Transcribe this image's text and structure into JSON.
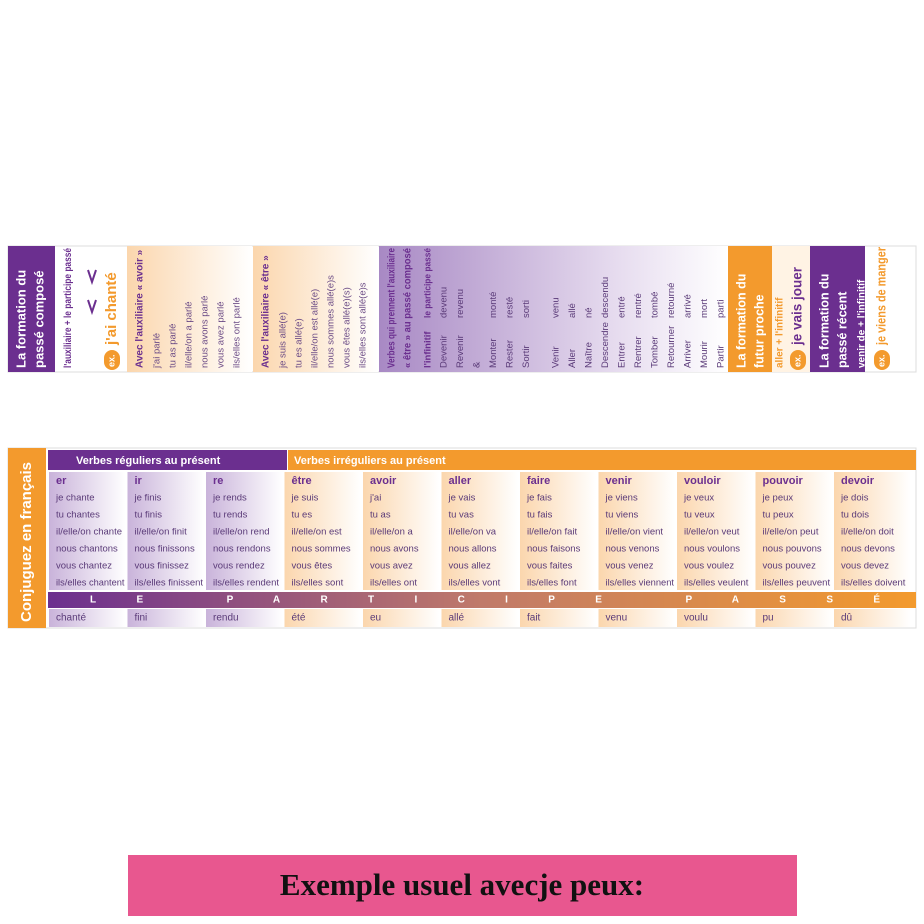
{
  "passe_compose": {
    "title": [
      "La formation du",
      "passé composé"
    ],
    "formula": "l'auxiliaire + le participe passé",
    "example_marker": "ex.",
    "example": "j'ai chanté"
  },
  "avoir_panel": {
    "heading": "Avec l'auxiliaire « avoir »",
    "lines": [
      "j'ai parlé",
      "tu as parlé",
      "il/elle/on a parlé",
      "nous avons parlé",
      "vous avez parlé",
      "ils/elles ont parlé"
    ]
  },
  "etre_panel": {
    "heading": "Avec l'auxiliaire « être »",
    "lines": [
      "je suis allé(e)",
      "tu es allé(e)",
      "il/elle/on est allé(e)",
      "nous sommes allé(e)s",
      "vous êtes allé(e)(s)",
      "ils/elles sont allé(e)s"
    ]
  },
  "etre_verbs": {
    "heading": [
      "Verbes qui prennent l'auxiliaire",
      "« être » au passé composé"
    ],
    "headers": [
      "l'infinitif",
      "le participe passé"
    ],
    "rows": [
      {
        "infinitive": "Devenir",
        "participle": "devenu"
      },
      {
        "infinitive": "Revenir",
        "participle": "revenu"
      },
      {
        "infinitive": "&"
      },
      {
        "infinitive": "Monter",
        "participle": "monté"
      },
      {
        "infinitive": "Rester",
        "participle": "resté"
      },
      {
        "infinitive": "Sortir",
        "participle": "sorti"
      },
      {
        "infinitive": "Venir",
        "participle": "venu"
      },
      {
        "infinitive": "Aller",
        "participle": "allé"
      },
      {
        "infinitive": "Naître",
        "participle": "né"
      },
      {
        "infinitive": "Descendre",
        "participle": "descendu"
      },
      {
        "infinitive": "Entrer",
        "participle": "entré"
      },
      {
        "infinitive": "Rentrer",
        "participle": "rentré"
      },
      {
        "infinitive": "Tomber",
        "participle": "tombé"
      },
      {
        "infinitive": "Retourner",
        "participle": "retourné"
      },
      {
        "infinitive": "Arriver",
        "participle": "arrivé"
      },
      {
        "infinitive": "Mourir",
        "participle": "mort"
      },
      {
        "infinitive": "Partir",
        "participle": "parti"
      }
    ]
  },
  "futur_proche": {
    "title": [
      "La formation du",
      "futur proche"
    ],
    "formula": "aller + l'infinitif",
    "example_marker": "ex.",
    "example": "je vais jouer"
  },
  "passe_recent": {
    "title": [
      "La formation du",
      "passé récent"
    ],
    "formula": "venir de + l'infinitif",
    "example_marker": "ex.",
    "example": "je viens de manger"
  },
  "conjugation": {
    "title": "Conjuguez en français",
    "groups": [
      "Verbes réguliers au présent",
      "Verbes irréguliers au présent"
    ],
    "participle_label": "LE PARTICIPE PASSÉ",
    "verbs": [
      {
        "name": "er",
        "forms": [
          "je chante",
          "tu chantes",
          "il/elle/on chante",
          "nous chantons",
          "vous chantez",
          "ils/elles chantent"
        ],
        "participle": "chanté"
      },
      {
        "name": "ir",
        "forms": [
          "je finis",
          "tu finis",
          "il/elle/on finit",
          "nous finissons",
          "vous finissez",
          "ils/elles finissent"
        ],
        "participle": "fini"
      },
      {
        "name": "re",
        "forms": [
          "je rends",
          "tu rends",
          "il/elle/on rend",
          "nous rendons",
          "vous rendez",
          "ils/elles rendent"
        ],
        "participle": "rendu"
      },
      {
        "name": "être",
        "forms": [
          "je suis",
          "tu es",
          "il/elle/on est",
          "nous sommes",
          "vous êtes",
          "ils/elles sont"
        ],
        "participle": "été"
      },
      {
        "name": "avoir",
        "forms": [
          "j'ai",
          "tu as",
          "il/elle/on a",
          "nous avons",
          "vous avez",
          "ils/elles ont"
        ],
        "participle": "eu"
      },
      {
        "name": "aller",
        "forms": [
          "je vais",
          "tu vas",
          "il/elle/on va",
          "nous allons",
          "vous allez",
          "ils/elles vont"
        ],
        "participle": "allé"
      },
      {
        "name": "faire",
        "forms": [
          "je fais",
          "tu fais",
          "il/elle/on fait",
          "nous faisons",
          "vous faites",
          "ils/elles font"
        ],
        "participle": "fait"
      },
      {
        "name": "venir",
        "forms": [
          "je viens",
          "tu viens",
          "il/elle/on vient",
          "nous venons",
          "vous venez",
          "ils/elles viennent"
        ],
        "participle": "venu"
      },
      {
        "name": "vouloir",
        "forms": [
          "je veux",
          "tu veux",
          "il/elle/on veut",
          "nous voulons",
          "vous voulez",
          "ils/elles veulent"
        ],
        "participle": "voulu"
      },
      {
        "name": "pouvoir",
        "forms": [
          "je peux",
          "tu peux",
          "il/elle/on peut",
          "nous pouvons",
          "vous pouvez",
          "ils/elles peuvent"
        ],
        "participle": "pu"
      },
      {
        "name": "devoir",
        "forms": [
          "je dois",
          "tu dois",
          "il/elle/on doit",
          "nous devons",
          "vous devez",
          "ils/elles doivent"
        ],
        "participle": "dû"
      }
    ]
  },
  "banner": "Exemple usuel avecje peux:"
}
